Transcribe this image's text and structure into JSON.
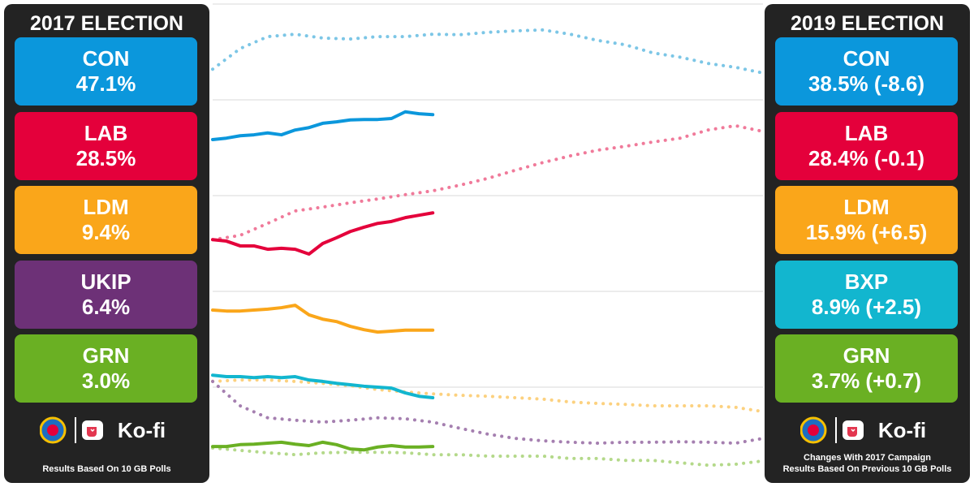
{
  "left_panel": {
    "title": "2017 ELECTION",
    "parties": [
      {
        "name": "CON",
        "value": "47.1%",
        "color": "#0b97dc"
      },
      {
        "name": "LAB",
        "value": "28.5%",
        "color": "#e4003b"
      },
      {
        "name": "LDM",
        "value": "9.4%",
        "color": "#faa61a"
      },
      {
        "name": "UKIP",
        "value": "6.4%",
        "color": "#6d3177"
      },
      {
        "name": "GRN",
        "value": "3.0%",
        "color": "#6ab023"
      }
    ],
    "brand": "Ko-fi",
    "footer": [
      "Results Based On 10 GB Polls"
    ]
  },
  "right_panel": {
    "title": "2019 ELECTION",
    "parties": [
      {
        "name": "CON",
        "value": "38.5% (-8.6)",
        "color": "#0b97dc"
      },
      {
        "name": "LAB",
        "value": "28.4% (-0.1)",
        "color": "#e4003b"
      },
      {
        "name": "LDM",
        "value": "15.9% (+6.5)",
        "color": "#faa61a"
      },
      {
        "name": "BXP",
        "value": "8.9% (+2.5)",
        "color": "#12b6cf"
      },
      {
        "name": "GRN",
        "value": "3.7% (+0.7)",
        "color": "#6ab023"
      }
    ],
    "brand": "Ko-fi",
    "footer": [
      "Changes With 2017 Campaign",
      "Results Based On Previous 10 GB Polls"
    ]
  },
  "chart_data": {
    "type": "line",
    "xlim": [
      0,
      40
    ],
    "ylim": [
      0,
      100
    ],
    "yticks": [
      20,
      40,
      60,
      80,
      100
    ],
    "grid": true,
    "series": [
      {
        "color": "#7cc6e6",
        "dash": true,
        "x": [
          0,
          2,
          4,
          6,
          8,
          10,
          12,
          14,
          16,
          18,
          20,
          22,
          24,
          26,
          28,
          30,
          32,
          34,
          36,
          38,
          40
        ],
        "values": [
          86.4,
          90.7,
          93.2,
          93.7,
          92.9,
          92.7,
          93.2,
          93.2,
          93.7,
          93.6,
          94.1,
          94.4,
          94.6,
          93.7,
          92.4,
          91.5,
          89.8,
          88.9,
          87.6,
          86.8,
          85.6
        ]
      },
      {
        "color": "#f07a9a",
        "dash": true,
        "x": [
          0,
          2,
          4,
          6,
          8,
          10,
          12,
          14,
          16,
          18,
          20,
          22,
          24,
          26,
          28,
          30,
          32,
          34,
          36,
          38,
          40
        ],
        "values": [
          50.8,
          51.7,
          54.2,
          56.8,
          57.6,
          58.5,
          59.3,
          60.2,
          61.0,
          62.2,
          63.6,
          65.3,
          66.9,
          68.3,
          69.5,
          70.3,
          71.2,
          72.0,
          73.7,
          74.6,
          73.4
        ]
      },
      {
        "color": "#fcd17f",
        "dash": true,
        "x": [
          0,
          2,
          4,
          6,
          8,
          10,
          12,
          14,
          16,
          18,
          20,
          22,
          24,
          26,
          28,
          30,
          32,
          34,
          36,
          38,
          40
        ],
        "values": [
          21.2,
          21.5,
          21.5,
          21.2,
          20.8,
          20.3,
          19.5,
          19.0,
          18.6,
          18.3,
          18.1,
          17.8,
          17.5,
          16.9,
          16.6,
          16.4,
          16.1,
          16.1,
          16.1,
          15.8,
          14.9
        ]
      },
      {
        "color": "#a57fb0",
        "dash": true,
        "x": [
          0,
          2,
          4,
          6,
          8,
          10,
          12,
          14,
          16,
          18,
          20,
          22,
          24,
          26,
          28,
          30,
          32,
          34,
          36,
          38,
          40
        ],
        "values": [
          21.2,
          16.1,
          13.6,
          13.1,
          12.7,
          13.1,
          13.6,
          13.4,
          12.7,
          11.4,
          10.2,
          9.3,
          8.8,
          8.5,
          8.3,
          8.5,
          8.5,
          8.6,
          8.5,
          8.3,
          9.3
        ]
      },
      {
        "color": "#b4d98a",
        "dash": true,
        "x": [
          0,
          2,
          4,
          6,
          8,
          10,
          12,
          14,
          16,
          18,
          20,
          22,
          24,
          26,
          28,
          30,
          32,
          34,
          36,
          38,
          40
        ],
        "values": [
          7.3,
          6.8,
          6.3,
          5.9,
          6.3,
          6.4,
          6.4,
          6.3,
          5.9,
          5.9,
          5.6,
          5.6,
          5.6,
          5.1,
          5.1,
          4.7,
          4.7,
          4.2,
          3.7,
          3.9,
          4.6
        ]
      },
      {
        "color": "#0b97dc",
        "dash": false,
        "x": [
          0,
          1,
          2,
          3,
          4,
          5,
          6,
          7,
          8,
          9,
          10,
          11,
          12,
          13,
          14,
          15,
          16
        ],
        "values": [
          71.7,
          72.0,
          72.5,
          72.7,
          73.1,
          72.7,
          73.7,
          74.2,
          75.1,
          75.4,
          75.8,
          75.9,
          75.9,
          76.1,
          77.5,
          77.1,
          76.9
        ]
      },
      {
        "color": "#e4003b",
        "dash": false,
        "x": [
          0,
          1,
          2,
          3,
          4,
          5,
          6,
          7,
          8,
          9,
          10,
          11,
          12,
          13,
          14,
          15,
          16
        ],
        "values": [
          50.8,
          50.5,
          49.5,
          49.5,
          48.8,
          49.0,
          48.8,
          47.8,
          50.0,
          51.2,
          52.5,
          53.4,
          54.2,
          54.6,
          55.4,
          55.9,
          56.4
        ]
      },
      {
        "color": "#faa61a",
        "dash": false,
        "x": [
          0,
          1,
          2,
          3,
          4,
          5,
          6,
          7,
          8,
          9,
          10,
          11,
          12,
          13,
          14,
          15,
          16
        ],
        "values": [
          36.1,
          35.9,
          35.9,
          36.1,
          36.3,
          36.6,
          37.1,
          35.1,
          34.2,
          33.7,
          32.7,
          32.0,
          31.5,
          31.7,
          31.9,
          31.9,
          31.9
        ]
      },
      {
        "color": "#12b6cf",
        "dash": false,
        "x": [
          0,
          1,
          2,
          3,
          4,
          5,
          6,
          7,
          8,
          9,
          10,
          11,
          12,
          13,
          14,
          15,
          16
        ],
        "values": [
          22.5,
          22.2,
          22.2,
          22.0,
          22.2,
          22.0,
          22.2,
          21.5,
          21.2,
          20.8,
          20.5,
          20.2,
          20.0,
          19.8,
          18.8,
          18.1,
          17.8
        ]
      },
      {
        "color": "#6ab023",
        "dash": false,
        "x": [
          0,
          1,
          2,
          3,
          4,
          5,
          6,
          7,
          8,
          9,
          10,
          11,
          12,
          13,
          14,
          15,
          16
        ],
        "values": [
          7.6,
          7.6,
          8.0,
          8.1,
          8.3,
          8.5,
          8.1,
          7.8,
          8.5,
          8.0,
          7.1,
          6.9,
          7.5,
          7.8,
          7.5,
          7.5,
          7.6
        ]
      }
    ]
  }
}
